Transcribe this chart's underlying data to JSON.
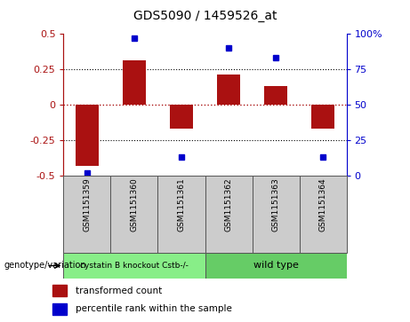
{
  "title": "GDS5090 / 1459526_at",
  "samples": [
    "GSM1151359",
    "GSM1151360",
    "GSM1151361",
    "GSM1151362",
    "GSM1151363",
    "GSM1151364"
  ],
  "bar_values": [
    -0.43,
    0.31,
    -0.17,
    0.21,
    0.13,
    -0.17
  ],
  "percentile_values": [
    2,
    97,
    13,
    90,
    83,
    13
  ],
  "group1_label": "cystatin B knockout Cstb-/-",
  "group2_label": "wild type",
  "group1_indices": [
    0,
    1,
    2
  ],
  "group2_indices": [
    3,
    4,
    5
  ],
  "bar_color": "#aa1111",
  "dot_color": "#0000cc",
  "group1_bg": "#88ee88",
  "group2_bg": "#66cc66",
  "sample_bg": "#cccccc",
  "ylim": [
    -0.5,
    0.5
  ],
  "y2lim": [
    0,
    100
  ],
  "legend_bar_label": "transformed count",
  "legend_dot_label": "percentile rank within the sample",
  "genotype_label": "genotype/variation",
  "left_yticks": [
    -0.5,
    -0.25,
    0,
    0.25,
    0.5
  ],
  "right_yticks": [
    0,
    25,
    50,
    75,
    100
  ],
  "bar_width": 0.5
}
